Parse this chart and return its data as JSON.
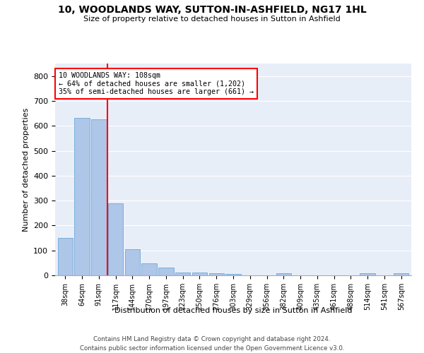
{
  "title": "10, WOODLANDS WAY, SUTTON-IN-ASHFIELD, NG17 1HL",
  "subtitle": "Size of property relative to detached houses in Sutton in Ashfield",
  "xlabel": "Distribution of detached houses by size in Sutton in Ashfield",
  "ylabel": "Number of detached properties",
  "categories": [
    "38sqm",
    "64sqm",
    "91sqm",
    "117sqm",
    "144sqm",
    "170sqm",
    "197sqm",
    "223sqm",
    "250sqm",
    "276sqm",
    "303sqm",
    "329sqm",
    "356sqm",
    "382sqm",
    "409sqm",
    "435sqm",
    "461sqm",
    "488sqm",
    "514sqm",
    "541sqm",
    "567sqm"
  ],
  "values": [
    150,
    632,
    627,
    290,
    104,
    48,
    30,
    12,
    12,
    8,
    7,
    0,
    0,
    8,
    0,
    0,
    0,
    0,
    8,
    0,
    8
  ],
  "bar_color": "#aec6e8",
  "bar_edge_color": "#5a9fd4",
  "vline_x": 2.5,
  "vline_color": "red",
  "annotation_text": "10 WOODLANDS WAY: 108sqm\n← 64% of detached houses are smaller (1,202)\n35% of semi-detached houses are larger (661) →",
  "annotation_box_color": "white",
  "annotation_box_edge_color": "red",
  "ylim": [
    0,
    850
  ],
  "yticks": [
    0,
    100,
    200,
    300,
    400,
    500,
    600,
    700,
    800
  ],
  "bg_color": "#e8eef8",
  "grid_color": "white",
  "footer": "Contains HM Land Registry data © Crown copyright and database right 2024.\nContains public sector information licensed under the Open Government Licence v3.0."
}
